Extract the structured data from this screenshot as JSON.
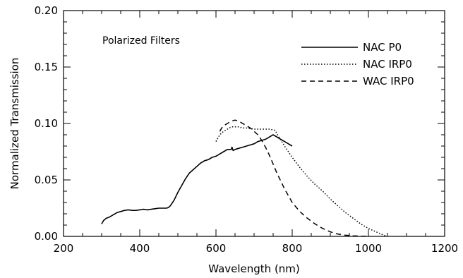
{
  "chart_data": {
    "type": "line",
    "title": "",
    "annotation": "Polarized Filters",
    "xlabel": "Wavelength (nm)",
    "ylabel": "Normalized Transmission",
    "xlim": [
      200,
      1200
    ],
    "ylim": [
      0.0,
      0.2
    ],
    "x_ticks": [
      200,
      400,
      600,
      800,
      1000,
      1200
    ],
    "x_tick_labels": [
      "200",
      "400",
      "600",
      "800",
      "1000",
      "1200"
    ],
    "y_ticks": [
      0.0,
      0.05,
      0.1,
      0.15,
      0.2
    ],
    "y_tick_labels": [
      "0.00",
      "0.05",
      "0.10",
      "0.15",
      "0.20"
    ],
    "grid": false,
    "legend_position": "top-right",
    "series": [
      {
        "name": "NAC P0",
        "style": "solid",
        "x": [
          300,
          305,
          312,
          320,
          330,
          340,
          350,
          360,
          370,
          380,
          390,
          400,
          410,
          420,
          430,
          440,
          450,
          460,
          470,
          475,
          480,
          490,
          500,
          510,
          520,
          530,
          540,
          550,
          560,
          570,
          580,
          590,
          600,
          610,
          620,
          630,
          640,
          642,
          645,
          650,
          660,
          670,
          680,
          690,
          700,
          710,
          720,
          730,
          740,
          750,
          760,
          770,
          780,
          790,
          800
        ],
        "y": [
          0.011,
          0.014,
          0.016,
          0.017,
          0.019,
          0.021,
          0.022,
          0.023,
          0.0235,
          0.023,
          0.023,
          0.0235,
          0.024,
          0.0235,
          0.024,
          0.0245,
          0.025,
          0.025,
          0.025,
          0.0255,
          0.027,
          0.032,
          0.039,
          0.045,
          0.051,
          0.056,
          0.059,
          0.062,
          0.065,
          0.067,
          0.068,
          0.07,
          0.071,
          0.073,
          0.075,
          0.077,
          0.077,
          0.079,
          0.076,
          0.077,
          0.078,
          0.079,
          0.08,
          0.081,
          0.082,
          0.084,
          0.085,
          0.086,
          0.088,
          0.09,
          0.088,
          0.086,
          0.084,
          0.082,
          0.08
        ]
      },
      {
        "name": "NAC IRP0",
        "style": "dotted",
        "x": [
          600,
          605,
          610,
          620,
          630,
          640,
          650,
          660,
          670,
          680,
          700,
          720,
          740,
          755,
          765,
          780,
          800,
          820,
          840,
          860,
          880,
          900,
          920,
          940,
          960,
          980,
          1000,
          1020,
          1040,
          1050
        ],
        "y": [
          0.084,
          0.087,
          0.09,
          0.093,
          0.095,
          0.097,
          0.097,
          0.097,
          0.096,
          0.096,
          0.095,
          0.095,
          0.095,
          0.094,
          0.088,
          0.08,
          0.07,
          0.061,
          0.053,
          0.046,
          0.04,
          0.033,
          0.027,
          0.021,
          0.016,
          0.011,
          0.007,
          0.004,
          0.001,
          0.0
        ]
      },
      {
        "name": "WAC IRP0",
        "style": "dashed",
        "x": [
          610,
          615,
          620,
          630,
          640,
          650,
          660,
          670,
          680,
          690,
          700,
          710,
          720,
          730,
          740,
          750,
          760,
          770,
          780,
          790,
          800,
          820,
          840,
          860,
          880,
          900,
          920,
          940,
          960,
          980,
          1000
        ],
        "y": [
          0.093,
          0.096,
          0.098,
          0.1,
          0.102,
          0.103,
          0.102,
          0.1,
          0.098,
          0.096,
          0.093,
          0.09,
          0.085,
          0.079,
          0.072,
          0.064,
          0.056,
          0.049,
          0.042,
          0.036,
          0.03,
          0.022,
          0.016,
          0.011,
          0.007,
          0.004,
          0.002,
          0.001,
          0.0005,
          0.0002,
          0.0
        ]
      }
    ]
  }
}
